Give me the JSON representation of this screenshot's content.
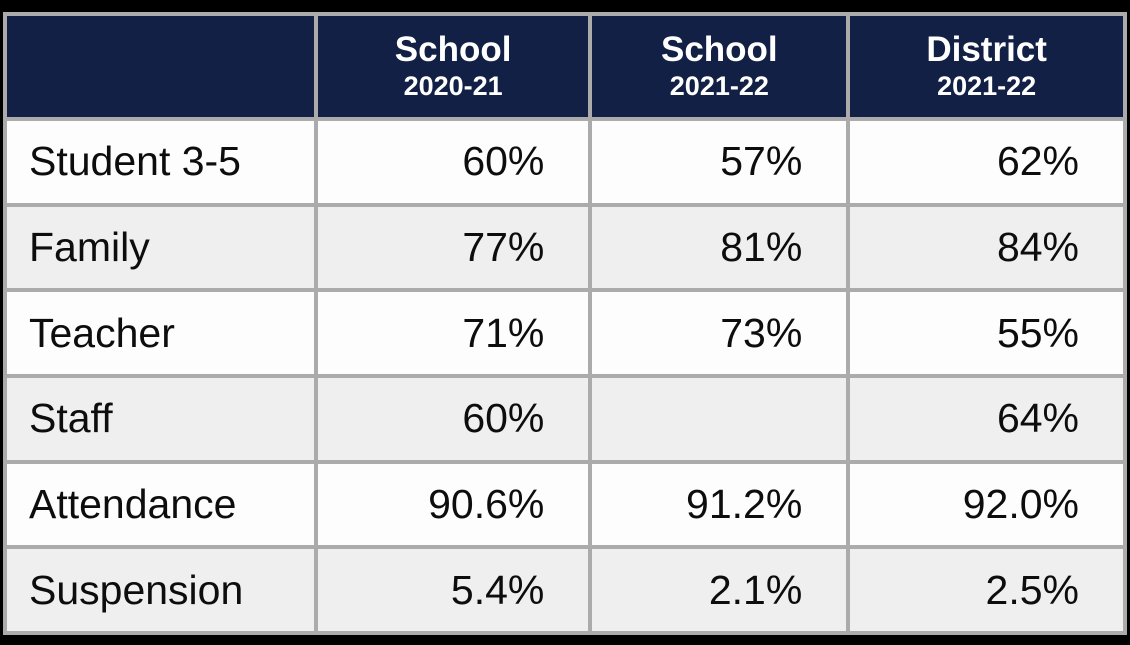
{
  "table": {
    "header": {
      "corner": "",
      "columns": [
        {
          "title": "School",
          "subtitle": "2020-21"
        },
        {
          "title": "School",
          "subtitle": "2021-22"
        },
        {
          "title": "District",
          "subtitle": "2021-22"
        }
      ]
    },
    "rows": [
      {
        "label": "Student 3-5",
        "values": [
          "60%",
          "57%",
          "62%"
        ]
      },
      {
        "label": "Family",
        "values": [
          "77%",
          "81%",
          "84%"
        ]
      },
      {
        "label": "Teacher",
        "values": [
          "71%",
          "73%",
          "55%"
        ]
      },
      {
        "label": "Staff",
        "values": [
          "60%",
          "",
          "64%"
        ]
      },
      {
        "label": "Attendance",
        "values": [
          "90.6%",
          "91.2%",
          "92.0%"
        ]
      },
      {
        "label": "Suspension",
        "values": [
          "5.4%",
          "2.1%",
          "2.5%"
        ]
      }
    ],
    "colors": {
      "header_bg": "#132045",
      "header_text": "#ffffff",
      "grid_line": "#ababab",
      "row_bg": "#fdfdfd",
      "row_alt_bg": "#efefef",
      "outer_frame": "#000000",
      "body_text": "#0d0d0d"
    }
  },
  "chart_data": {
    "type": "table",
    "columns": [
      "",
      "School 2020-21",
      "School 2021-22",
      "District 2021-22"
    ],
    "rows": [
      [
        "Student 3-5",
        "60%",
        "57%",
        "62%"
      ],
      [
        "Family",
        "77%",
        "81%",
        "84%"
      ],
      [
        "Teacher",
        "71%",
        "73%",
        "55%"
      ],
      [
        "Staff",
        "60%",
        "",
        "64%"
      ],
      [
        "Attendance",
        "90.6%",
        "91.2%",
        "92.0%"
      ],
      [
        "Suspension",
        "5.4%",
        "2.1%",
        "2.5%"
      ]
    ]
  }
}
